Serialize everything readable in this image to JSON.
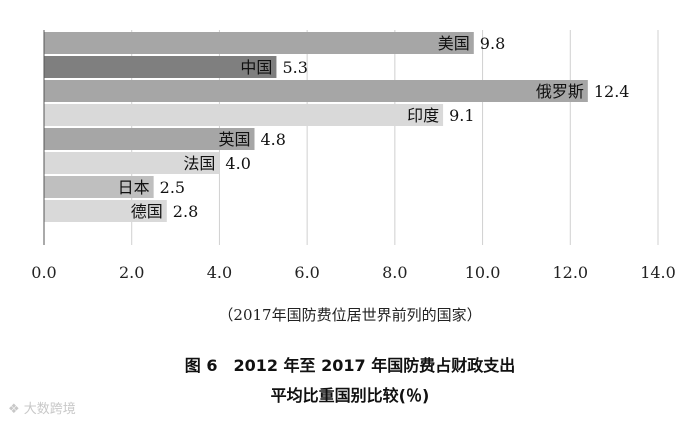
{
  "chart_data": {
    "type": "bar",
    "orientation": "horizontal",
    "categories": [
      "美国",
      "中国",
      "俄罗斯",
      "印度",
      "英国",
      "法国",
      "日本",
      "德国"
    ],
    "values": [
      9.8,
      5.3,
      12.4,
      9.1,
      4.8,
      4.0,
      2.5,
      2.8
    ],
    "value_labels": [
      "9.8",
      "5.3",
      "12.4",
      "9.1",
      "4.8",
      "4.0",
      "2.5",
      "2.8"
    ],
    "bar_colors": [
      "#a6a6a6",
      "#7f7f7f",
      "#a6a6a6",
      "#d9d9d9",
      "#a6a6a6",
      "#d9d9d9",
      "#bfbfbf",
      "#d9d9d9"
    ],
    "xlim": [
      0,
      14
    ],
    "xticks": [
      0,
      2,
      4,
      6,
      8,
      10,
      12,
      14
    ],
    "xtick_labels": [
      "0.0",
      "2.0",
      "4.0",
      "6.0",
      "8.0",
      "10.0",
      "12.0",
      "14.0"
    ],
    "grid": "vertical",
    "subtitle": "（2017年国防费位居世界前列的国家）",
    "title_line1": "图 6　2012 年至 2017 年国防费占财政支出",
    "title_line2": "平均比重国别比较(％)"
  },
  "watermark": "大数跨境"
}
